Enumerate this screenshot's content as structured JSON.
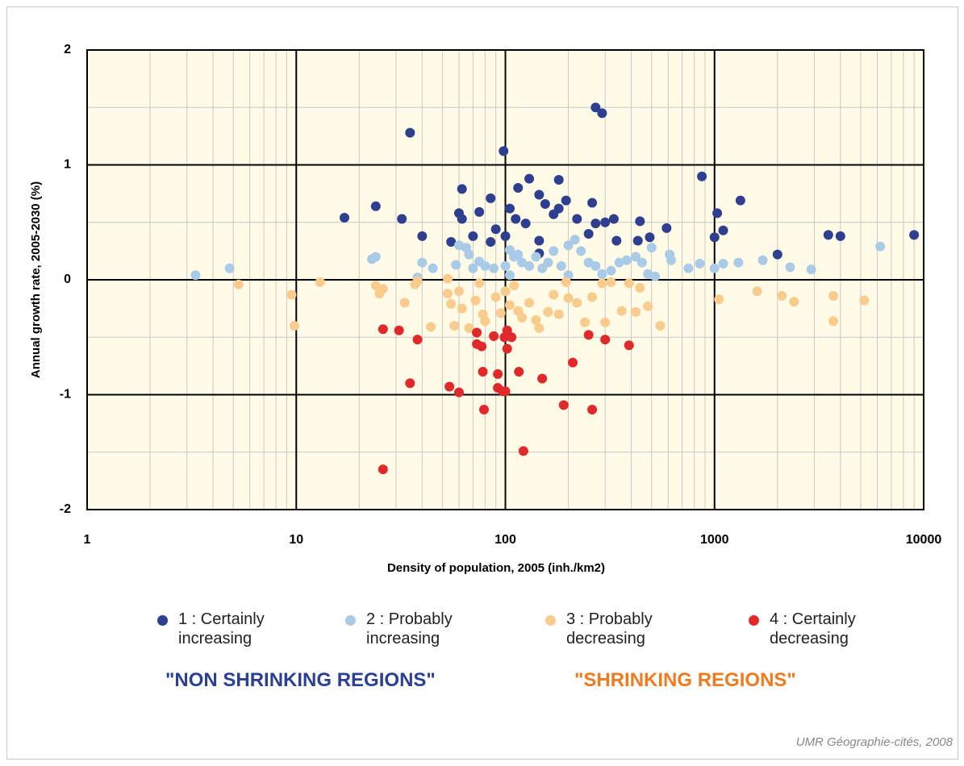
{
  "chart_data": {
    "type": "scatter",
    "xlabel": "Density of population, 2005 (inh./km2)",
    "ylabel": "Annual growth rate, 2005-2030 (%)",
    "xlog": true,
    "grid": true,
    "minor_grid": true,
    "xlim": [
      1,
      10000
    ],
    "xticks": [
      1,
      10,
      100,
      1000,
      10000
    ],
    "ylim": [
      -2,
      2
    ],
    "yticks": [
      -2,
      -1,
      0,
      1,
      2
    ],
    "annotations": [
      "\"NON SHRINKING REGIONS\"",
      "\"SHRINKING REGIONS\""
    ],
    "source": "UMR Géographie-cités, 2008",
    "series": [
      {
        "name": "1 : Certainly increasing",
        "color": "#2e3f8f",
        "x": [
          35,
          270,
          290,
          98,
          870,
          130,
          180,
          115,
          62,
          145,
          85,
          1330,
          195,
          260,
          24,
          155,
          105,
          180,
          75,
          60,
          1030,
          170,
          17,
          32,
          62,
          112,
          220,
          330,
          125,
          270,
          440,
          300,
          590,
          90,
          1100,
          3500,
          4000,
          9000,
          40,
          70,
          100,
          490,
          1000,
          250,
          145,
          340,
          430,
          55,
          85,
          2000,
          145
        ],
        "values": [
          1.28,
          1.5,
          1.45,
          1.12,
          0.9,
          0.88,
          0.87,
          0.8,
          0.79,
          0.74,
          0.71,
          0.69,
          0.69,
          0.67,
          0.64,
          0.66,
          0.62,
          0.62,
          0.59,
          0.58,
          0.58,
          0.57,
          0.54,
          0.53,
          0.53,
          0.53,
          0.53,
          0.53,
          0.49,
          0.49,
          0.51,
          0.5,
          0.45,
          0.44,
          0.43,
          0.39,
          0.38,
          0.39,
          0.38,
          0.38,
          0.38,
          0.37,
          0.37,
          0.4,
          0.34,
          0.34,
          0.34,
          0.33,
          0.33,
          0.22,
          0.23
        ]
      },
      {
        "name": "2 : Probably increasing",
        "color": "#a9cbe8",
        "x": [
          3.3,
          4.8,
          23,
          24,
          40,
          45,
          38,
          58,
          60,
          65,
          67,
          70,
          75,
          80,
          88,
          100,
          105,
          110,
          115,
          120,
          130,
          140,
          150,
          160,
          170,
          185,
          200,
          215,
          230,
          250,
          270,
          290,
          320,
          350,
          380,
          420,
          450,
          480,
          500,
          520,
          610,
          620,
          750,
          850,
          1000,
          1100,
          1300,
          1700,
          2300,
          2900,
          6200,
          105,
          200
        ],
        "values": [
          0.04,
          0.1,
          0.18,
          0.2,
          0.15,
          0.1,
          0.02,
          0.13,
          0.3,
          0.28,
          0.22,
          0.1,
          0.16,
          0.12,
          0.1,
          0.12,
          0.26,
          0.2,
          0.22,
          0.15,
          0.12,
          0.2,
          0.1,
          0.15,
          0.25,
          0.12,
          0.3,
          0.35,
          0.25,
          0.15,
          0.12,
          0.05,
          0.08,
          0.15,
          0.17,
          0.2,
          0.15,
          0.05,
          0.28,
          0.03,
          0.22,
          0.17,
          0.1,
          0.14,
          0.1,
          0.14,
          0.15,
          0.17,
          0.11,
          0.09,
          0.29,
          0.04,
          0.04
        ]
      },
      {
        "name": "3 : Probably decreasing",
        "color": "#f9cc8e",
        "x": [
          5.3,
          9.5,
          9.8,
          13,
          24,
          25,
          26,
          33,
          37,
          38,
          44,
          53,
          53,
          55,
          57,
          60,
          62,
          67,
          72,
          75,
          78,
          80,
          90,
          95,
          100,
          105,
          110,
          115,
          120,
          130,
          140,
          145,
          160,
          170,
          180,
          195,
          200,
          220,
          240,
          260,
          290,
          300,
          320,
          360,
          390,
          420,
          440,
          480,
          550,
          1050,
          1600,
          2100,
          2400,
          3700,
          3700,
          5200
        ],
        "values": [
          -0.04,
          -0.13,
          -0.4,
          -0.02,
          -0.05,
          -0.12,
          -0.08,
          -0.2,
          -0.04,
          -0.01,
          -0.41,
          0.01,
          -0.12,
          -0.21,
          -0.4,
          -0.1,
          -0.25,
          -0.42,
          -0.18,
          -0.03,
          -0.3,
          -0.36,
          -0.15,
          -0.29,
          -0.1,
          -0.22,
          -0.05,
          -0.27,
          -0.33,
          -0.2,
          -0.35,
          -0.42,
          -0.28,
          -0.13,
          -0.3,
          -0.02,
          -0.16,
          -0.2,
          -0.37,
          -0.15,
          -0.03,
          -0.37,
          -0.02,
          -0.27,
          -0.03,
          -0.28,
          -0.07,
          -0.23,
          -0.4,
          -0.17,
          -0.1,
          -0.14,
          -0.19,
          -0.14,
          -0.36,
          -0.18
        ]
      },
      {
        "name": "4 : Certainly decreasing",
        "color": "#e0292b",
        "x": [
          26,
          26,
          31,
          35,
          38,
          54,
          60,
          73,
          73,
          77,
          78,
          79,
          88,
          92,
          92,
          97,
          99,
          100,
          102,
          102,
          107,
          116,
          122,
          150,
          190,
          210,
          250,
          260,
          300,
          390
        ],
        "values": [
          -1.65,
          -0.43,
          -0.44,
          -0.9,
          -0.52,
          -0.93,
          -0.98,
          -0.46,
          -0.56,
          -0.58,
          -0.8,
          -1.13,
          -0.49,
          -0.82,
          -0.94,
          -0.97,
          -0.5,
          -0.97,
          -0.6,
          -0.44,
          -0.5,
          -0.8,
          -1.49,
          -0.86,
          -1.09,
          -0.72,
          -0.48,
          -1.13,
          -0.52,
          -0.57
        ]
      }
    ]
  }
}
